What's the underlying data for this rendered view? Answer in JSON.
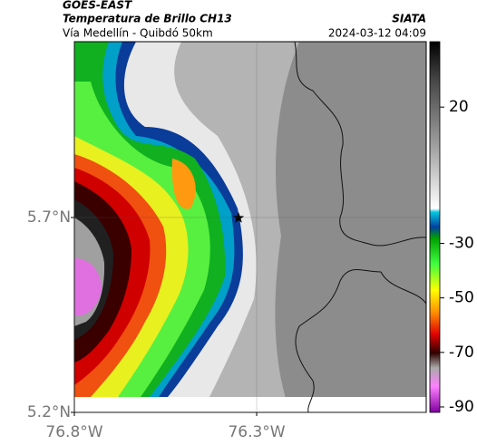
{
  "header": {
    "satellite": "GOES-EAST",
    "product": "Temperatura de Brillo CH13",
    "route": "Vía Medellín - Quibdó 50km",
    "source": "SIATA",
    "timestamp": "2024-03-12 04:09"
  },
  "map": {
    "xlim": [
      -76.8,
      -75.835
    ],
    "ylim": [
      5.2,
      6.151
    ],
    "xticks": [
      {
        "value": -76.8,
        "label": "76.8°W"
      },
      {
        "value": -76.3,
        "label": "76.3°W"
      }
    ],
    "yticks": [
      {
        "value": 5.2,
        "label": "5.2°N"
      },
      {
        "value": 5.7,
        "label": "5.7°N"
      }
    ],
    "grid": true
  },
  "colorbar": {
    "lim": [
      -92,
      44
    ],
    "ticks": [
      20,
      -30,
      -50,
      -70,
      -90
    ]
  }
}
